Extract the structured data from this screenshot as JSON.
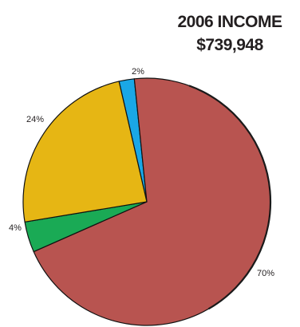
{
  "chart_data": {
    "type": "pie",
    "title": "2006 INCOME",
    "subtitle": "$739,948",
    "slices": [
      {
        "label": "2%",
        "value": 2,
        "color": "#1aa7e6"
      },
      {
        "label": "70%",
        "value": 70,
        "color": "#b85450"
      },
      {
        "label": "4%",
        "value": 4,
        "color": "#1aaa55"
      },
      {
        "label": "24%",
        "value": 24,
        "color": "#e6b614"
      }
    ],
    "start_angle_deg": -13,
    "direction": "clockwise",
    "legend": "none",
    "grid": false
  }
}
